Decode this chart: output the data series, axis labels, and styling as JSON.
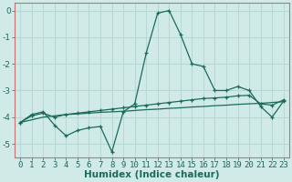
{
  "title": "",
  "xlabel": "Humidex (Indice chaleur)",
  "x": [
    0,
    1,
    2,
    3,
    4,
    5,
    6,
    7,
    8,
    9,
    10,
    11,
    12,
    13,
    14,
    15,
    16,
    17,
    18,
    19,
    20,
    21,
    22,
    23
  ],
  "line1": [
    -4.2,
    -3.9,
    -3.8,
    -4.3,
    -4.7,
    -4.5,
    -4.4,
    -4.35,
    -5.3,
    -3.8,
    -3.5,
    -1.6,
    -0.1,
    0.0,
    -0.9,
    -2.0,
    -2.1,
    -3.0,
    -3.0,
    -2.85,
    -3.0,
    -3.6,
    -4.0,
    -3.4
  ],
  "line2": [
    -4.2,
    -3.95,
    -3.85,
    -4.0,
    -3.9,
    -3.85,
    -3.8,
    -3.75,
    -3.7,
    -3.65,
    -3.6,
    -3.55,
    -3.5,
    -3.45,
    -3.4,
    -3.35,
    -3.3,
    -3.28,
    -3.25,
    -3.2,
    -3.18,
    -3.5,
    -3.55,
    -3.35
  ],
  "line3": [
    -4.2,
    -4.1,
    -4.0,
    -3.95,
    -3.9,
    -3.88,
    -3.85,
    -3.82,
    -3.8,
    -3.78,
    -3.75,
    -3.72,
    -3.7,
    -3.67,
    -3.65,
    -3.62,
    -3.6,
    -3.57,
    -3.55,
    -3.52,
    -3.5,
    -3.48,
    -3.45,
    -3.42
  ],
  "line_color": "#1a6b5a",
  "bg_color": "#d0eae8",
  "grid_color": "#b8d8d4",
  "spine_color": "#c87070",
  "ylim": [
    -5.5,
    0.3
  ],
  "xlim": [
    -0.5,
    23.5
  ],
  "yticks": [
    0,
    -1,
    -2,
    -3,
    -4,
    -5
  ],
  "tick_fontsize": 6.5,
  "xlabel_fontsize": 7.5
}
